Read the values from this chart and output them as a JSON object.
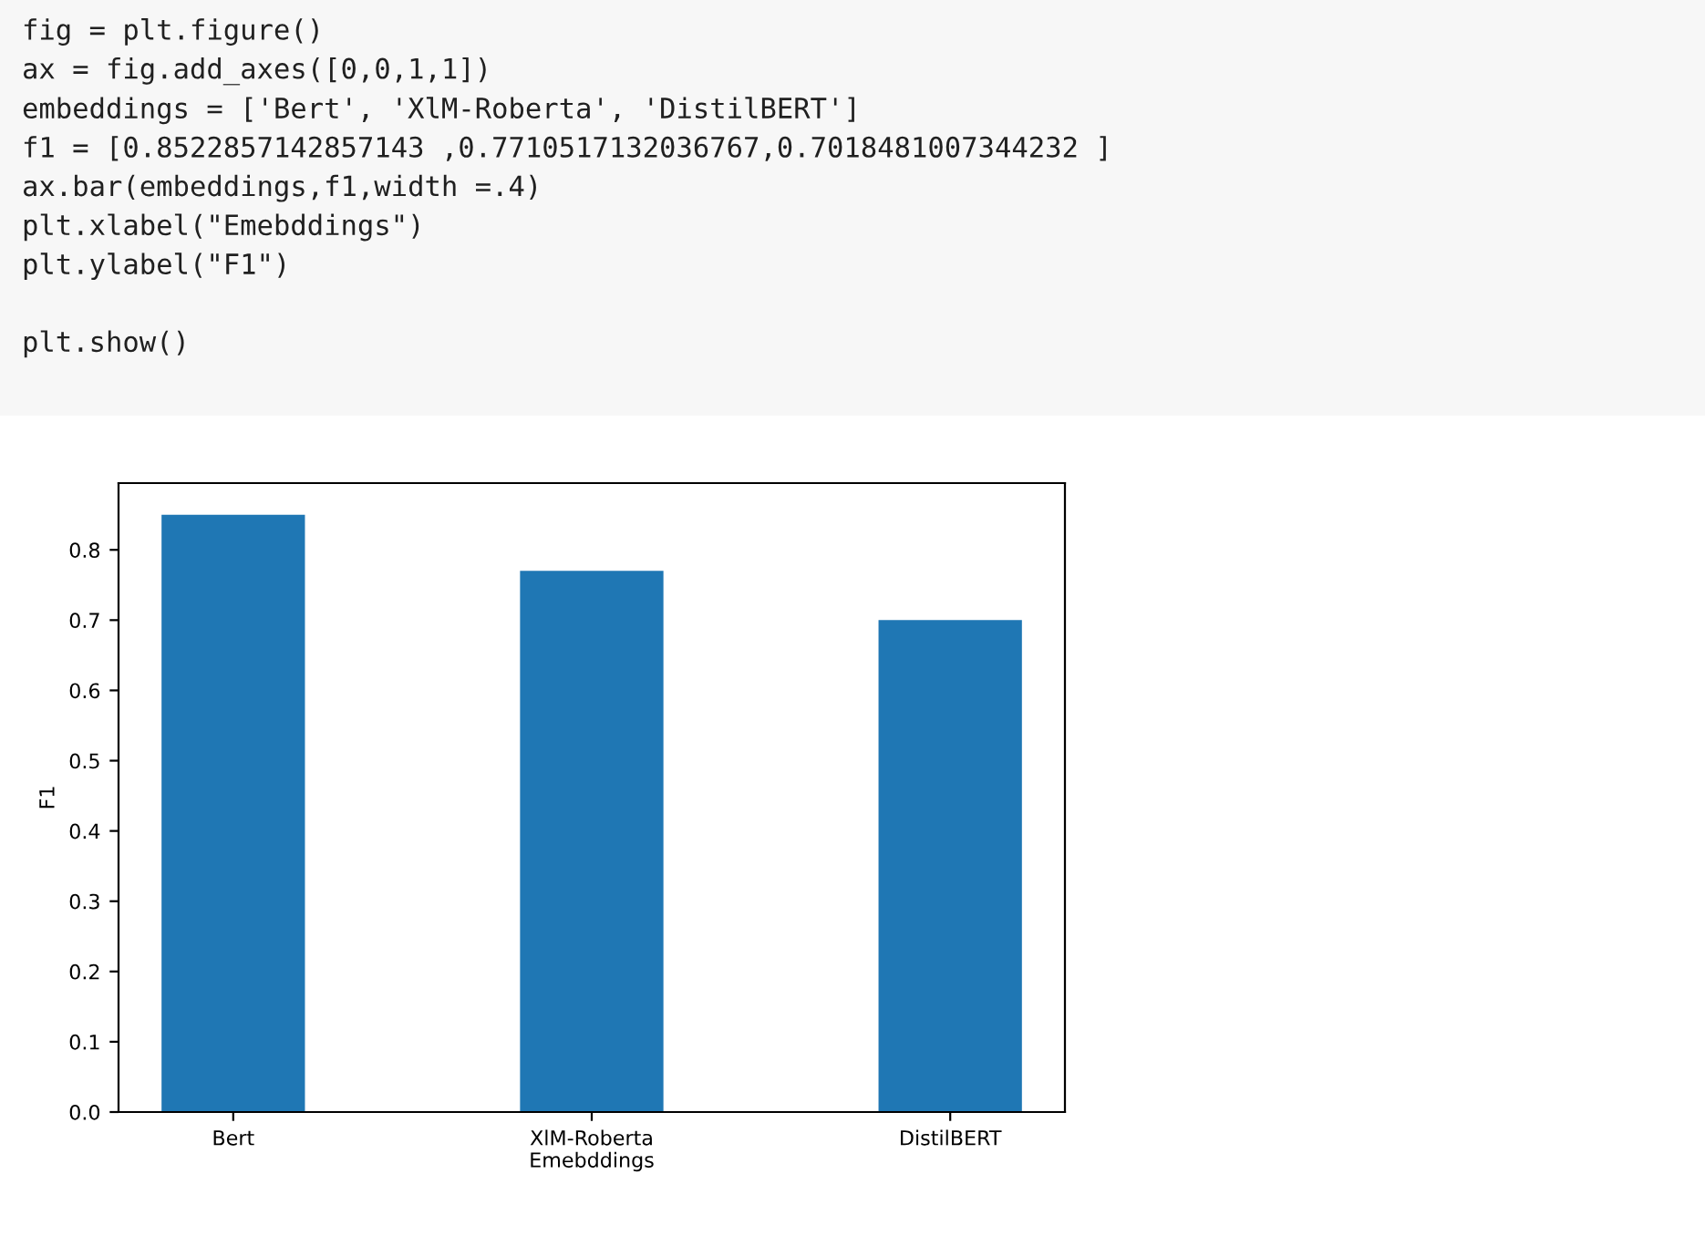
{
  "chart_data": {
    "type": "bar",
    "categories": [
      "Bert",
      "XlM-Roberta",
      "DistilBERT"
    ],
    "values": [
      0.85,
      0.77,
      0.7
    ],
    "color": "#1f77b4",
    "xlabel": "Emebddings",
    "ylabel": "F1",
    "ylim": [
      0,
      0.895
    ],
    "yticks": [
      {
        "value": 0,
        "label": "0.0"
      },
      0.1,
      0.2,
      0.3,
      0.4,
      0.5,
      0.6,
      0.7,
      0.8
    ],
    "grid": false,
    "annotations": [
      "fig = plt.figure()\nax = fig.add_axes([0,0,1,1])\nembeddings = ['Bert', 'XlM-Roberta', 'DistilBERT']\nf1 = [0.8522857142857143 ,0.7710517132036767,0.7018481007344232 ]\nax.bar(embeddings,f1,width =.4)\nplt.xlabel(\"Emebddings\")\nplt.ylabel(\"F1\")\n\nplt.show()"
    ]
  }
}
